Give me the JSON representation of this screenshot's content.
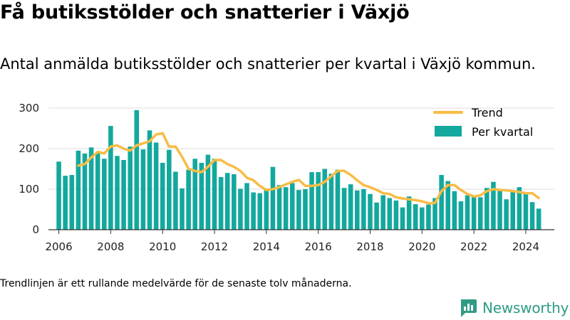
{
  "title": "Få butiksstölder och snatterier i Växjö",
  "subtitle": "Antal anmälda butiksstölder och snatterier per kvartal i Växjö kommun.",
  "footnote": "Trendlinjen är ett rullande medelvärde för de senaste tolv månaderna.",
  "brand": {
    "name": "Newsworthy",
    "icon": "newsworthy-logo-icon",
    "color": "#2e9c84"
  },
  "chart_data": {
    "type": "bar",
    "title": "",
    "xlabel": "",
    "ylabel": "",
    "ylim": [
      0,
      300
    ],
    "yticks": [
      0,
      100,
      200,
      300
    ],
    "xticks": [
      2006,
      2008,
      2010,
      2012,
      2014,
      2016,
      2018,
      2020,
      2022,
      2024
    ],
    "grid": "horizontal",
    "legend_position": "top-right",
    "colors": {
      "bars": "#13a89e",
      "trend": "#f8bc45"
    },
    "x": [
      2006.0,
      2006.25,
      2006.5,
      2006.75,
      2007.0,
      2007.25,
      2007.5,
      2007.75,
      2008.0,
      2008.25,
      2008.5,
      2008.75,
      2009.0,
      2009.25,
      2009.5,
      2009.75,
      2010.0,
      2010.25,
      2010.5,
      2010.75,
      2011.0,
      2011.25,
      2011.5,
      2011.75,
      2012.0,
      2012.25,
      2012.5,
      2012.75,
      2013.0,
      2013.25,
      2013.5,
      2013.75,
      2014.0,
      2014.25,
      2014.5,
      2014.75,
      2015.0,
      2015.25,
      2015.5,
      2015.75,
      2016.0,
      2016.25,
      2016.5,
      2016.75,
      2017.0,
      2017.25,
      2017.5,
      2017.75,
      2018.0,
      2018.25,
      2018.5,
      2018.75,
      2019.0,
      2019.25,
      2019.5,
      2019.75,
      2020.0,
      2020.25,
      2020.5,
      2020.75,
      2021.0,
      2021.25,
      2021.5,
      2021.75,
      2022.0,
      2022.25,
      2022.5,
      2022.75,
      2023.0,
      2023.25,
      2023.5,
      2023.75,
      2024.0,
      2024.25,
      2024.5
    ],
    "series": [
      {
        "name": "Per kvartal",
        "type": "bar",
        "values": [
          168,
          133,
          135,
          195,
          188,
          203,
          190,
          175,
          256,
          182,
          172,
          205,
          295,
          198,
          245,
          215,
          165,
          197,
          143,
          102,
          148,
          175,
          165,
          185,
          175,
          130,
          140,
          137,
          101,
          115,
          92,
          90,
          100,
          155,
          110,
          105,
          115,
          98,
          100,
          142,
          142,
          150,
          138,
          148,
          103,
          112,
          97,
          100,
          88,
          67,
          85,
          78,
          72,
          55,
          82,
          63,
          55,
          62,
          78,
          135,
          120,
          95,
          70,
          85,
          82,
          80,
          103,
          118,
          97,
          75,
          95,
          105,
          90,
          68,
          52
        ]
      },
      {
        "name": "Trend",
        "type": "line",
        "values": [
          null,
          null,
          null,
          158,
          162,
          178,
          192,
          188,
          205,
          208,
          200,
          195,
          208,
          213,
          218,
          235,
          238,
          205,
          205,
          180,
          150,
          145,
          142,
          155,
          172,
          172,
          162,
          155,
          145,
          128,
          122,
          108,
          98,
          100,
          105,
          112,
          118,
          123,
          108,
          108,
          110,
          118,
          132,
          145,
          145,
          135,
          122,
          110,
          105,
          98,
          90,
          88,
          80,
          77,
          75,
          73,
          70,
          65,
          66,
          95,
          110,
          110,
          98,
          88,
          82,
          85,
          95,
          100,
          98,
          97,
          95,
          93,
          90,
          90,
          78
        ]
      }
    ]
  }
}
